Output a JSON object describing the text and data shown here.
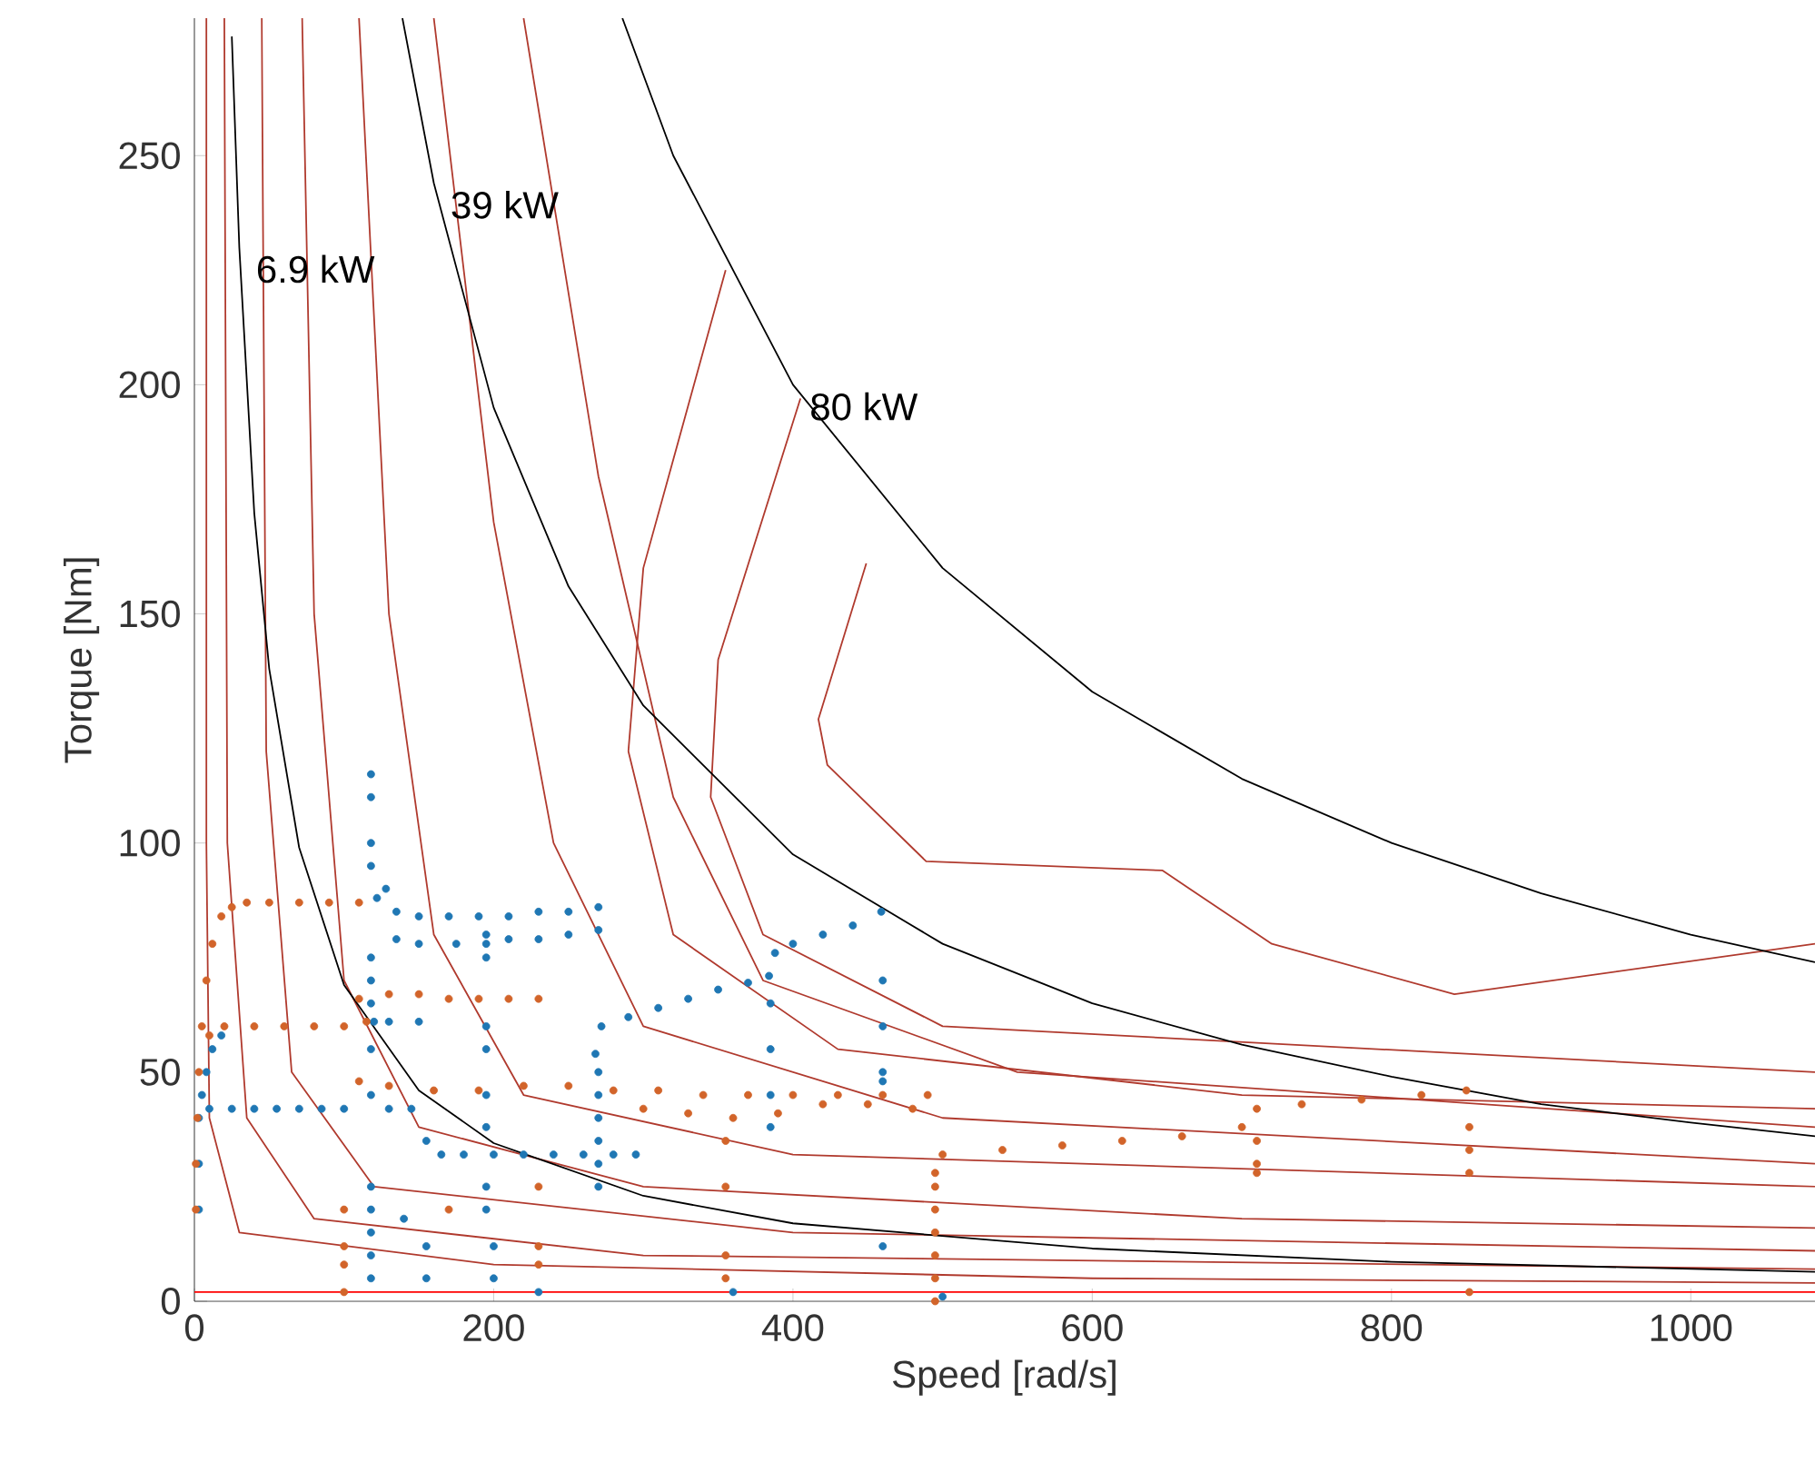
{
  "chart_data": {
    "type": "line",
    "xlabel": "Speed [rad/s]",
    "ylabel": "Torque [Nm]",
    "xlim": [
      0,
      1083
    ],
    "ylim": [
      0,
      280
    ],
    "xticks": [
      0,
      200,
      400,
      600,
      800,
      1000
    ],
    "yticks": [
      0,
      50,
      100,
      150,
      200,
      250
    ],
    "grid": false,
    "marker": "none",
    "annotations": [
      {
        "text": "6.9 kW",
        "x": 30,
        "y": 230
      },
      {
        "text": "39 kW",
        "x": 160,
        "y": 244
      },
      {
        "text": "80 kW",
        "x": 400,
        "y": 200
      }
    ],
    "series": [
      {
        "color": "#b03a2e",
        "x": [
          8,
          8,
          10,
          30,
          200,
          600,
          1083
        ],
        "values": [
          280,
          100,
          40,
          15,
          8,
          5,
          4
        ]
      },
      {
        "color": "#b03a2e",
        "x": [
          20,
          22,
          35,
          80,
          300,
          1083
        ],
        "values": [
          280,
          100,
          40,
          18,
          10,
          7
        ]
      },
      {
        "color": "#b03a2e",
        "x": [
          45,
          48,
          65,
          120,
          400,
          1083
        ],
        "values": [
          280,
          120,
          50,
          25,
          15,
          11
        ]
      },
      {
        "color": "#b03a2e",
        "x": [
          72,
          80,
          100,
          150,
          300,
          700,
          1083
        ],
        "values": [
          280,
          150,
          70,
          38,
          25,
          18,
          16
        ]
      },
      {
        "color": "#b03a2e",
        "x": [
          110,
          130,
          160,
          220,
          400,
          1083
        ],
        "values": [
          280,
          150,
          80,
          45,
          32,
          25
        ]
      },
      {
        "color": "#b03a2e",
        "x": [
          160,
          200,
          240,
          300,
          500,
          1083
        ],
        "values": [
          280,
          170,
          100,
          60,
          40,
          30
        ]
      },
      {
        "color": "#b03a2e",
        "x": [
          220,
          270,
          320,
          380,
          550,
          1083
        ],
        "values": [
          280,
          180,
          110,
          70,
          50,
          38
        ]
      },
      {
        "color": "#b03a2e",
        "x": [
          355,
          300,
          290,
          320,
          430,
          700,
          1083
        ],
        "values": [
          225,
          160,
          120,
          80,
          55,
          45,
          42
        ]
      },
      {
        "color": "#b03a2e",
        "x": [
          405,
          350,
          345,
          380,
          500,
          1083
        ],
        "values": [
          197,
          140,
          110,
          80,
          60,
          50
        ]
      },
      {
        "color": "#b03a2e",
        "x": [
          449,
          417,
          423,
          489,
          647,
          665,
          720,
          842,
          1083
        ],
        "values": [
          161,
          127,
          117,
          96,
          94,
          90,
          78,
          67,
          78
        ]
      },
      {
        "color": "#ff0000",
        "x": [
          0,
          1083
        ],
        "values": [
          2,
          2
        ]
      },
      {
        "color": "#000000",
        "x": [
          25,
          30,
          40,
          50,
          70,
          100,
          150,
          200,
          300,
          400,
          600,
          800,
          1083
        ],
        "values": [
          276,
          230,
          172,
          138,
          99,
          69,
          46,
          34.5,
          23,
          17,
          11.5,
          8.6,
          6.4
        ]
      },
      {
        "color": "#000000",
        "x": [
          139,
          160,
          200,
          250,
          300,
          400,
          500,
          600,
          700,
          800,
          900,
          1000,
          1083
        ],
        "values": [
          280,
          244,
          195,
          156,
          130,
          97.5,
          78,
          65,
          56,
          49,
          43,
          39,
          36
        ]
      },
      {
        "color": "#000000",
        "x": [
          286,
          320,
          400,
          500,
          600,
          700,
          800,
          900,
          1000,
          1083
        ],
        "values": [
          280,
          250,
          200,
          160,
          133,
          114,
          100,
          89,
          80,
          74
        ]
      },
      {
        "type": "scatter",
        "marker": "circle",
        "color": "#1f77b4",
        "x": [
          3,
          3,
          3,
          5,
          8,
          12,
          18,
          10,
          25,
          40,
          55,
          70,
          85,
          100,
          130,
          145,
          118,
          118,
          118,
          118,
          118,
          118,
          118,
          118,
          118,
          118,
          118,
          118,
          118,
          118,
          122,
          128,
          135,
          150,
          170,
          190,
          195,
          210,
          230,
          250,
          270,
          135,
          150,
          175,
          195,
          210,
          230,
          250,
          270,
          120,
          130,
          150,
          195,
          195,
          195,
          195,
          195,
          195,
          195,
          155,
          165,
          180,
          200,
          220,
          240,
          260,
          280,
          295,
          270,
          270,
          270,
          270,
          270,
          270,
          268,
          272,
          290,
          310,
          330,
          350,
          370,
          384,
          388,
          400,
          420,
          440,
          459,
          385,
          385,
          385,
          385,
          460,
          460,
          460,
          460,
          460,
          140,
          155,
          155,
          200,
          200,
          230,
          360,
          500
        ],
        "values": [
          20,
          30,
          40,
          45,
          50,
          55,
          58,
          42,
          42,
          42,
          42,
          42,
          42,
          42,
          42,
          42,
          115,
          110,
          100,
          95,
          75,
          70,
          65,
          55,
          45,
          25,
          20,
          15,
          10,
          5,
          88,
          90,
          85,
          84,
          84,
          84,
          80,
          84,
          85,
          85,
          86,
          79,
          78,
          78,
          78,
          79,
          79,
          80,
          81,
          61,
          61,
          61,
          75,
          60,
          55,
          45,
          38,
          25,
          20,
          35,
          32,
          32,
          32,
          32,
          32,
          32,
          32,
          32,
          50,
          45,
          40,
          35,
          30,
          25,
          54,
          60,
          62,
          64,
          66,
          68,
          69.5,
          71,
          76,
          78,
          80,
          82,
          85,
          65,
          55,
          45,
          38,
          70,
          60,
          50,
          48,
          12,
          18,
          12,
          5,
          12,
          5,
          2,
          2,
          1
        ]
      },
      {
        "type": "scatter",
        "marker": "circle",
        "color": "#d2642a",
        "x": [
          2,
          3,
          5,
          8,
          12,
          18,
          25,
          35,
          50,
          70,
          90,
          110,
          10,
          20,
          40,
          60,
          80,
          100,
          115,
          110,
          130,
          150,
          170,
          190,
          210,
          230,
          110,
          130,
          160,
          190,
          220,
          250,
          280,
          310,
          340,
          370,
          400,
          430,
          460,
          490,
          300,
          330,
          360,
          390,
          420,
          450,
          480,
          495,
          500,
          540,
          580,
          620,
          660,
          700,
          710,
          740,
          780,
          820,
          850,
          495,
          495,
          495,
          495,
          495,
          495,
          710,
          710,
          710,
          852,
          852,
          852,
          852,
          100,
          100,
          100,
          100,
          230,
          230,
          230,
          355,
          355,
          355,
          355,
          170,
          1,
          1
        ],
        "values": [
          40,
          50,
          60,
          70,
          78,
          84,
          86,
          87,
          87,
          87,
          87,
          87,
          58,
          60,
          60,
          60,
          60,
          60,
          61,
          66,
          67,
          67,
          66,
          66,
          66,
          66,
          48,
          47,
          46,
          46,
          47,
          47,
          46,
          46,
          45,
          45,
          45,
          45,
          45,
          45,
          42,
          41,
          40,
          41,
          43,
          43,
          42,
          28,
          32,
          33,
          34,
          35,
          36,
          38,
          42,
          43,
          44,
          45,
          46,
          25,
          20,
          15,
          10,
          5,
          0,
          35,
          30,
          28,
          38,
          33,
          28,
          2,
          20,
          12,
          8,
          2,
          25,
          12,
          8,
          35,
          25,
          10,
          5,
          20,
          30,
          20
        ]
      }
    ]
  }
}
